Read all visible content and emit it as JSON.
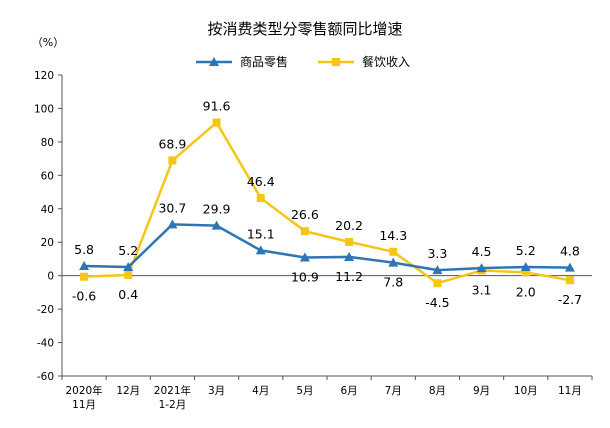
{
  "chart_data": {
    "type": "line",
    "title": "按消费类型分零售额同比增速",
    "ylabel": "（%）",
    "xlabel": "",
    "ylim": [
      -60,
      120
    ],
    "yticks": [
      -60,
      -40,
      -20,
      0,
      20,
      40,
      60,
      80,
      100,
      120
    ],
    "grid": false,
    "legend_position": "top-center",
    "categories": [
      [
        "2020年",
        "11月"
      ],
      [
        "12月"
      ],
      [
        "2021年",
        "1-2月"
      ],
      [
        "3月"
      ],
      [
        "4月"
      ],
      [
        "5月"
      ],
      [
        "6月"
      ],
      [
        "7月"
      ],
      [
        "8月"
      ],
      [
        "9月"
      ],
      [
        "10月"
      ],
      [
        "11月"
      ]
    ],
    "series": [
      {
        "name": "商品零售",
        "color": "#2e75b6",
        "marker": "triangle",
        "values": [
          5.8,
          5.2,
          30.7,
          29.9,
          15.1,
          10.9,
          11.2,
          7.8,
          3.3,
          4.5,
          5.2,
          4.8
        ],
        "labels": [
          "5.8",
          "5.2",
          "30.7",
          "29.9",
          "15.1",
          "10.9",
          "11.2",
          "7.8",
          "3.3",
          "4.5",
          "5.2",
          "4.8"
        ],
        "label_side": [
          "above",
          "above",
          "above",
          "above",
          "above",
          "below",
          "below",
          "below",
          "above",
          "above",
          "above",
          "above"
        ]
      },
      {
        "name": "餐饮收入",
        "color": "#f5c518",
        "marker": "square",
        "values": [
          -0.6,
          0.4,
          68.9,
          91.6,
          46.4,
          26.6,
          20.2,
          14.3,
          -4.5,
          3.1,
          2.0,
          -2.7
        ],
        "labels": [
          "-0.6",
          "0.4",
          "68.9",
          "91.6",
          "46.4",
          "26.6",
          "20.2",
          "14.3",
          "-4.5",
          "3.1",
          "2.0",
          "-2.7"
        ],
        "label_side": [
          "below",
          "below",
          "above",
          "above",
          "above",
          "above",
          "above",
          "above",
          "below",
          "below",
          "below",
          "below"
        ]
      }
    ]
  }
}
